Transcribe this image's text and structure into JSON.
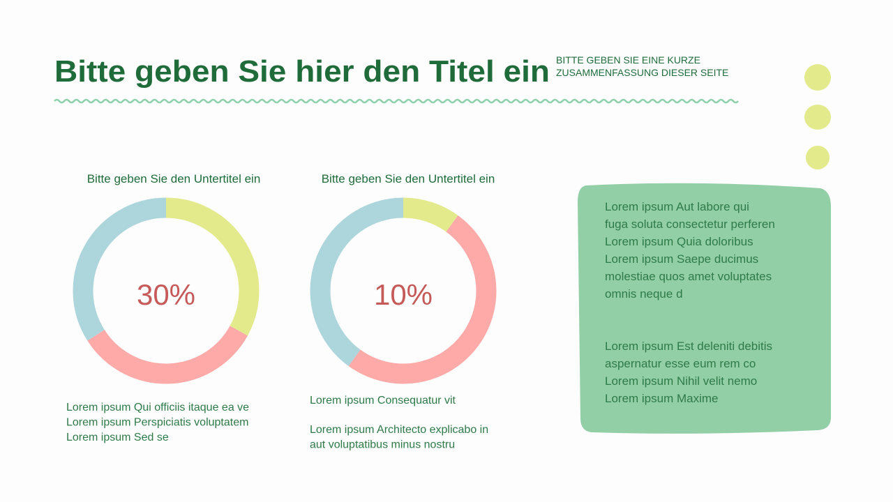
{
  "header": {
    "title": "Bitte geben Sie hier den Titel ein",
    "summary_lines": [
      "BITTE GEBEN SIE EINE KURZE",
      "ZUSAMMENFASSUNG DIESER SEITE"
    ]
  },
  "chart_data": [
    {
      "type": "pie",
      "subtitle": "Bitte geben Sie den Untertitel ein",
      "center_label": "30%",
      "values": [
        33,
        33,
        34
      ],
      "colors": [
        "#e2ea8c",
        "#fdaaa8",
        "#acd6dc"
      ],
      "notes": [
        [
          "Lorem ipsum Qui officiis itaque ea ve",
          "Lorem ipsum Perspiciatis voluptatem",
          "Lorem ipsum Sed se"
        ]
      ]
    },
    {
      "type": "pie",
      "subtitle": "Bitte geben Sie den Untertitel ein",
      "center_label": "10%",
      "values": [
        10,
        50,
        40
      ],
      "colors": [
        "#e2ea8c",
        "#fdaaa8",
        "#acd6dc"
      ],
      "notes": [
        [
          "Lorem ipsum Consequatur vit"
        ],
        [
          "Lorem ipsum Architecto explicabo in",
          "aut voluptatibus minus nostru"
        ]
      ]
    }
  ],
  "box": {
    "paragraphs": [
      [
        "Lorem ipsum Aut labore qui",
        "fuga soluta consectetur perferen",
        "Lorem ipsum Quia doloribus",
        "Lorem ipsum Saepe ducimus",
        "molestiae quos amet voluptates",
        "omnis neque d"
      ],
      [
        "Lorem ipsum Est deleniti debitis",
        "aspernatur esse eum rem co",
        "Lorem ipsum Nihil velit nemo",
        "Lorem ipsum Maxime"
      ]
    ]
  }
}
